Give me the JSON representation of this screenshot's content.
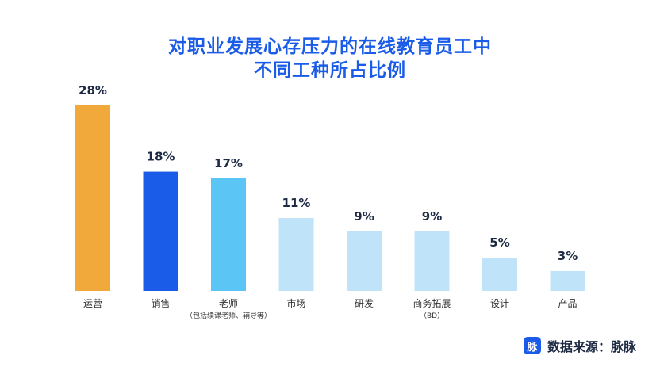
{
  "chart_data": {
    "type": "bar",
    "title_lines": [
      "对职业发展心存压力的在线教育员工中",
      "不同工种所占比例"
    ],
    "categories": [
      {
        "label": "运营",
        "sublabel": ""
      },
      {
        "label": "销售",
        "sublabel": ""
      },
      {
        "label": "老师",
        "sublabel": "（包括续课老师、辅导等）"
      },
      {
        "label": "市场",
        "sublabel": ""
      },
      {
        "label": "研发",
        "sublabel": ""
      },
      {
        "label": "商务拓展",
        "sublabel": "（BD）"
      },
      {
        "label": "设计",
        "sublabel": ""
      },
      {
        "label": "产品",
        "sublabel": ""
      }
    ],
    "values": [
      28,
      18,
      17,
      11,
      9,
      9,
      5,
      3
    ],
    "value_labels": [
      "28%",
      "18%",
      "17%",
      "11%",
      "9%",
      "9%",
      "5%",
      "3%"
    ],
    "ylim": [
      0,
      28
    ],
    "grid": false,
    "colors": [
      "#f2a93b",
      "#1a5be8",
      "#5bc6f6",
      "#bfe3f9",
      "#bfe3f9",
      "#bfe3f9",
      "#bfe3f9",
      "#bfe3f9"
    ]
  },
  "source": {
    "logo_text": "脉",
    "label": "数据来源：脉脉"
  }
}
